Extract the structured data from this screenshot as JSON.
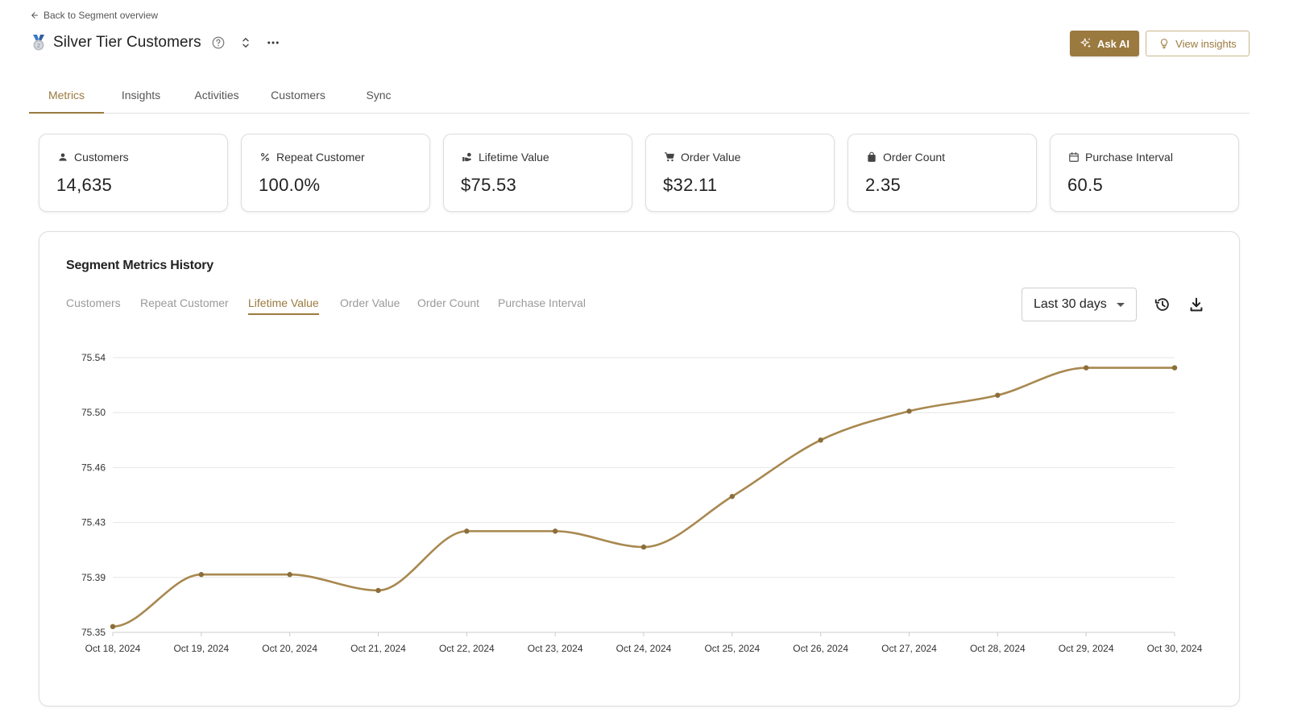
{
  "back_link": {
    "label": "Back to Segment overview",
    "icon": "arrow-left-icon"
  },
  "header": {
    "title": "Silver Tier Customers",
    "icons": [
      "medal-icon",
      "help-circle-icon",
      "unfold-icon",
      "more-horizontal-icon"
    ],
    "ask_ai_label": "Ask AI",
    "view_insights_label": "View insights"
  },
  "tabs": [
    {
      "label": "Metrics",
      "active": true
    },
    {
      "label": "Insights",
      "active": false
    },
    {
      "label": "Activities",
      "active": false
    },
    {
      "label": "Customers",
      "active": false
    },
    {
      "label": "Sync",
      "active": false
    }
  ],
  "cards": [
    {
      "label": "Customers",
      "value": "14,635",
      "icon": "person-icon"
    },
    {
      "label": "Repeat Customer",
      "value": "100.0%",
      "icon": "percent-icon"
    },
    {
      "label": "Lifetime Value",
      "value": "$75.53",
      "icon": "hand-money-icon"
    },
    {
      "label": "Order Value",
      "value": "$32.11",
      "icon": "cart-icon"
    },
    {
      "label": "Order Count",
      "value": "2.35",
      "icon": "bag-icon"
    },
    {
      "label": "Purchase Interval",
      "value": "60.5",
      "icon": "calendar-icon"
    }
  ],
  "history": {
    "title": "Segment Metrics History",
    "metric_tabs": [
      {
        "label": "Customers",
        "active": false
      },
      {
        "label": "Repeat Customer",
        "active": false
      },
      {
        "label": "Lifetime Value",
        "active": true
      },
      {
        "label": "Order Value",
        "active": false
      },
      {
        "label": "Order Count",
        "active": false
      },
      {
        "label": "Purchase Interval",
        "active": false
      }
    ],
    "range_label": "Last 30 days",
    "tool_icons": [
      "history-icon",
      "download-icon"
    ]
  },
  "colors": {
    "accent": "#9b7a3f",
    "line": "#a8884f",
    "grid": "#e6e6e6"
  },
  "chart_data": {
    "type": "line",
    "categories": [
      "Oct 18, 2024",
      "Oct 19, 2024",
      "Oct 20, 2024",
      "Oct 21, 2024",
      "Oct 22, 2024",
      "Oct 23, 2024",
      "Oct 24, 2024",
      "Oct 25, 2024",
      "Oct 26, 2024",
      "Oct 27, 2024",
      "Oct 28, 2024",
      "Oct 29, 2024",
      "Oct 30, 2024"
    ],
    "series": [
      {
        "values": [
          75.354,
          75.39,
          75.39,
          75.379,
          75.42,
          75.42,
          75.409,
          75.444,
          75.483,
          75.503,
          75.514,
          75.533,
          75.533
        ]
      }
    ],
    "y_ticks": [
      "75.35",
      "75.39",
      "75.43",
      "75.46",
      "75.50",
      "75.54"
    ],
    "ylim": [
      75.35,
      75.54
    ],
    "grid": true,
    "smooth": true,
    "markers": true
  }
}
